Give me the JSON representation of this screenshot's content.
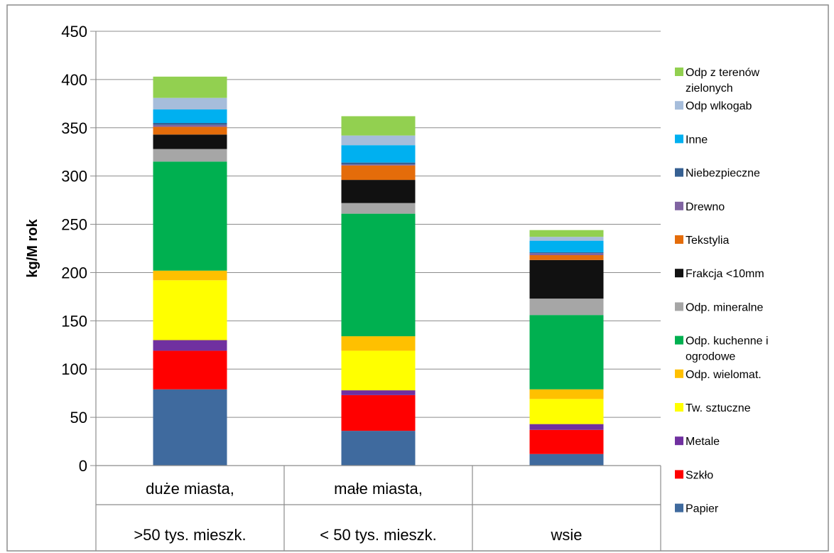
{
  "chart_data": {
    "type": "bar",
    "stacked": true,
    "xlabel": "",
    "ylabel": "kg/M rok",
    "ylim": [
      0,
      450
    ],
    "yticks": [
      0,
      50,
      100,
      150,
      200,
      250,
      300,
      350,
      400,
      450
    ],
    "grid": true,
    "legend_position": "right",
    "categories": [
      [
        "duże miasta,",
        ">50 tys. mieszk."
      ],
      [
        "małe miasta,",
        "< 50 tys. mieszk."
      ],
      [
        "",
        "wsie"
      ]
    ],
    "series": [
      {
        "name": "Papier",
        "color": "#3f6a9e",
        "values": [
          79,
          36,
          12
        ]
      },
      {
        "name": "Szkło",
        "color": "#ff0000",
        "values": [
          40,
          37,
          25
        ]
      },
      {
        "name": "Metale",
        "color": "#7030a0",
        "values": [
          11,
          5,
          6
        ]
      },
      {
        "name": "Tw. sztuczne",
        "color": "#ffff00",
        "values": [
          62,
          41,
          26
        ]
      },
      {
        "name": "Odp. wielomat.",
        "color": "#ffc000",
        "values": [
          10,
          15,
          10
        ]
      },
      {
        "name": "Odp. kuchenne i ogrodowe",
        "color": "#00b050",
        "values": [
          113,
          127,
          77
        ]
      },
      {
        "name": "Odp. mineralne",
        "color": "#a6a6a6",
        "values": [
          13,
          11,
          17
        ]
      },
      {
        "name": "Frakcja <10mm",
        "color": "#111111",
        "values": [
          15,
          24,
          40
        ]
      },
      {
        "name": "Tekstylia",
        "color": "#e46c0a",
        "values": [
          8,
          15,
          5
        ]
      },
      {
        "name": "Drewno",
        "color": "#8064a2",
        "values": [
          2,
          1,
          2
        ]
      },
      {
        "name": "Niebezpieczne",
        "color": "#366092",
        "values": [
          2,
          2,
          1
        ]
      },
      {
        "name": "Inne",
        "color": "#00b0f0",
        "values": [
          14,
          18,
          12
        ]
      },
      {
        "name": "Odp wlkogab",
        "color": "#a6bddb",
        "values": [
          12,
          10,
          4
        ]
      },
      {
        "name": "Odp z terenów zielonych",
        "color": "#92d050",
        "values": [
          22,
          20,
          7
        ]
      }
    ]
  }
}
